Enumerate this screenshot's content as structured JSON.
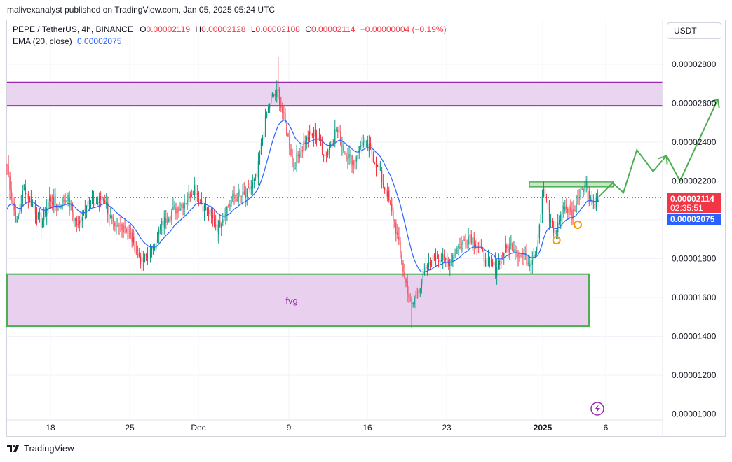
{
  "header": {
    "published": "malivexanalyst published on TradingView.com, Jan 05, 2025 05:24 UTC"
  },
  "legend": {
    "symbol": "PEPE / TetherUS, 4h, BINANCE",
    "o_key": "O",
    "o": "0.00002119",
    "h_key": "H",
    "h": "0.00002128",
    "l_key": "L",
    "l": "0.00002108",
    "c_key": "C",
    "c": "0.00002114",
    "change": "−0.00000004 (−0.19%)",
    "ema_label": "EMA (20, close)",
    "ema_value": "0.00002075"
  },
  "currency_button": "USDT",
  "price_tags": {
    "last_price": "0.00002114",
    "countdown": "02:35:51",
    "ema_price": "0.00002075"
  },
  "annotations": {
    "fvg_label": "fvg"
  },
  "footer": {
    "brand": "TradingView"
  },
  "colors": {
    "up": "#089981",
    "down": "#f23645",
    "ema": "#2962ff",
    "zone_fill": "#e8d0ee",
    "resistance_border": "#9c27b0",
    "fvg_border": "#4caf50",
    "projection": "#4caf50",
    "highlight_circle": "#ff9800"
  },
  "chart_data": {
    "type": "candlestick",
    "y_axis": {
      "ticks": [
        "0.00002800",
        "0.00002600",
        "0.00002400",
        "0.00002200",
        "0.00002000",
        "0.00001800",
        "0.00001600",
        "0.00001400",
        "0.00001200",
        "0.00001000"
      ],
      "range": [
        9.3e-06,
        3.1e-05
      ]
    },
    "x_axis": {
      "ticks": [
        "18",
        "25",
        "Dec",
        "9",
        "16",
        "23",
        "2025",
        "6"
      ]
    },
    "zones": [
      {
        "label": "",
        "kind": "resistance",
        "from": 2.587e-05,
        "to": 2.707e-05
      },
      {
        "label": "fvg",
        "kind": "fvg",
        "from": 1.452e-05,
        "to": 1.72e-05
      },
      {
        "label": "",
        "kind": "breakout-box",
        "from": 2.17e-05,
        "to": 2.195e-05
      }
    ],
    "anchors": [
      {
        "t": 0,
        "p": 2.28
      },
      {
        "t": 3,
        "p": 2.12
      },
      {
        "t": 7,
        "p": 1.98
      },
      {
        "t": 12,
        "p": 2.17
      },
      {
        "t": 18,
        "p": 2.08
      },
      {
        "t": 24,
        "p": 1.98
      },
      {
        "t": 30,
        "p": 2.11
      },
      {
        "t": 36,
        "p": 2.07
      },
      {
        "t": 42,
        "p": 2.12
      },
      {
        "t": 50,
        "p": 1.96
      },
      {
        "t": 56,
        "p": 2.1
      },
      {
        "t": 62,
        "p": 2.08
      },
      {
        "t": 68,
        "p": 2.12
      },
      {
        "t": 76,
        "p": 1.94
      },
      {
        "t": 82,
        "p": 1.98
      },
      {
        "t": 88,
        "p": 1.9
      },
      {
        "t": 95,
        "p": 1.78
      },
      {
        "t": 102,
        "p": 1.84
      },
      {
        "t": 108,
        "p": 1.96
      },
      {
        "t": 114,
        "p": 2.03
      },
      {
        "t": 120,
        "p": 2.06
      },
      {
        "t": 126,
        "p": 2.1
      },
      {
        "t": 132,
        "p": 2.17
      },
      {
        "t": 138,
        "p": 2.07
      },
      {
        "t": 143,
        "p": 2.03
      },
      {
        "t": 148,
        "p": 1.96
      },
      {
        "t": 154,
        "p": 2.05
      },
      {
        "t": 160,
        "p": 2.12
      },
      {
        "t": 168,
        "p": 2.12
      },
      {
        "t": 176,
        "p": 2.22
      },
      {
        "t": 181,
        "p": 2.48
      },
      {
        "t": 186,
        "p": 2.63
      },
      {
        "t": 191,
        "p": 2.65
      },
      {
        "t": 196,
        "p": 2.49
      },
      {
        "t": 202,
        "p": 2.28
      },
      {
        "t": 210,
        "p": 2.41
      },
      {
        "t": 217,
        "p": 2.45
      },
      {
        "t": 224,
        "p": 2.33
      },
      {
        "t": 232,
        "p": 2.47
      },
      {
        "t": 238,
        "p": 2.35
      },
      {
        "t": 244,
        "p": 2.3
      },
      {
        "t": 250,
        "p": 2.4
      },
      {
        "t": 256,
        "p": 2.36
      },
      {
        "t": 262,
        "p": 2.25
      },
      {
        "t": 268,
        "p": 2.12
      },
      {
        "t": 274,
        "p": 1.95
      },
      {
        "t": 280,
        "p": 1.7
      },
      {
        "t": 285,
        "p": 1.55
      },
      {
        "t": 290,
        "p": 1.65
      },
      {
        "t": 296,
        "p": 1.75
      },
      {
        "t": 302,
        "p": 1.82
      },
      {
        "t": 310,
        "p": 1.78
      },
      {
        "t": 318,
        "p": 1.86
      },
      {
        "t": 326,
        "p": 1.92
      },
      {
        "t": 332,
        "p": 1.86
      },
      {
        "t": 338,
        "p": 1.78
      },
      {
        "t": 344,
        "p": 1.75
      },
      {
        "t": 350,
        "p": 1.84
      },
      {
        "t": 356,
        "p": 1.87
      },
      {
        "t": 362,
        "p": 1.82
      },
      {
        "t": 368,
        "p": 1.78
      },
      {
        "t": 373,
        "p": 1.86
      },
      {
        "t": 378,
        "p": 2.16
      },
      {
        "t": 382,
        "p": 2.0
      },
      {
        "t": 386,
        "p": 1.93
      },
      {
        "t": 392,
        "p": 2.08
      },
      {
        "t": 398,
        "p": 2.02
      },
      {
        "t": 404,
        "p": 2.16
      },
      {
        "t": 408,
        "p": 2.19
      },
      {
        "t": 412,
        "p": 2.08
      },
      {
        "t": 417,
        "p": 2.11
      }
    ],
    "anchor_units": "price in 1e-5 USDT, t in 4h bars",
    "ema_period": 20,
    "last_price": 2.114e-05,
    "ema_value": 2.075e-05,
    "projection_path": [
      [
        2.12,
        0
      ],
      [
        2.19,
        5
      ],
      [
        2.14,
        9
      ],
      [
        2.36,
        14
      ],
      [
        2.25,
        20
      ],
      [
        2.33,
        25
      ],
      [
        2.2,
        30
      ],
      [
        2.62,
        44
      ]
    ],
    "highlight_points": [
      {
        "t": 387,
        "p": 1.92
      },
      {
        "t": 402,
        "p": 2.0
      }
    ]
  }
}
